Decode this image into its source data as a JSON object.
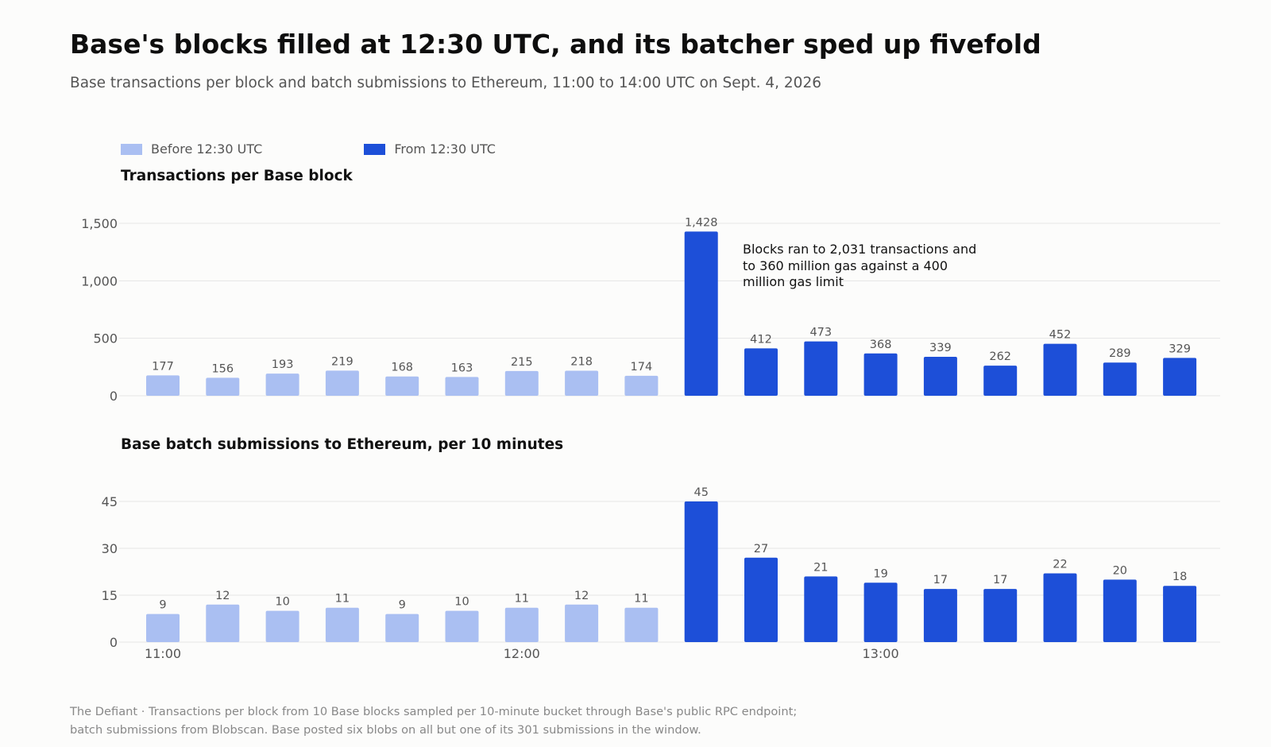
{
  "title": "Base's blocks filled at 12:30 UTC, and its batcher sped up fivefold",
  "subtitle": "Base transactions per block and batch submissions to Ethereum, 11:00 to 14:00 UTC on Sept. 4, 2026",
  "legend": [
    {
      "label": "Before 12:30 UTC",
      "color": "#aabff2"
    },
    {
      "label": "From 12:30 UTC",
      "color": "#1d4fd8"
    }
  ],
  "chart_data": [
    {
      "type": "bar",
      "title": "Transactions per Base block",
      "categories": [
        "11:00",
        "11:10",
        "11:20",
        "11:30",
        "11:40",
        "11:50",
        "12:00",
        "12:10",
        "12:20",
        "12:30",
        "12:40",
        "12:50",
        "13:00",
        "13:10",
        "13:20",
        "13:30",
        "13:40",
        "13:50"
      ],
      "values": [
        177,
        156,
        193,
        219,
        168,
        163,
        215,
        218,
        174,
        1428,
        412,
        473,
        368,
        339,
        262,
        452,
        289,
        329
      ],
      "value_labels": [
        "177",
        "156",
        "193",
        "219",
        "168",
        "163",
        "215",
        "218",
        "174",
        "1,428",
        "412",
        "473",
        "368",
        "339",
        "262",
        "452",
        "289",
        "329"
      ],
      "yticks": [
        0,
        500,
        1000,
        1500
      ],
      "ytick_labels": [
        "0",
        "500",
        "1,000",
        "1,500"
      ],
      "ylim": [
        0,
        1500
      ],
      "highlight_from_index": 9,
      "grid": true,
      "annotation": "Blocks ran to 2,031 transactions and to 360 million gas against a 400 million gas limit"
    },
    {
      "type": "bar",
      "title": "Base batch submissions to Ethereum, per 10 minutes",
      "categories": [
        "11:00",
        "11:10",
        "11:20",
        "11:30",
        "11:40",
        "11:50",
        "12:00",
        "12:10",
        "12:20",
        "12:30",
        "12:40",
        "12:50",
        "13:00",
        "13:10",
        "13:20",
        "13:30",
        "13:40",
        "13:50"
      ],
      "values": [
        9,
        12,
        10,
        11,
        9,
        10,
        11,
        12,
        11,
        45,
        27,
        21,
        19,
        17,
        17,
        22,
        20,
        18
      ],
      "value_labels": [
        "9",
        "12",
        "10",
        "11",
        "9",
        "10",
        "11",
        "12",
        "11",
        "45",
        "27",
        "21",
        "19",
        "17",
        "17",
        "22",
        "20",
        "18"
      ],
      "yticks": [
        0,
        15,
        30,
        45
      ],
      "ytick_labels": [
        "0",
        "15",
        "30",
        "45"
      ],
      "ylim": [
        0,
        45
      ],
      "xtick_labels": [
        {
          "index": 0,
          "label": "11:00"
        },
        {
          "index": 6,
          "label": "12:00"
        },
        {
          "index": 12,
          "label": "13:00"
        }
      ],
      "highlight_from_index": 9,
      "grid": true
    }
  ],
  "footer": [
    "The Defiant · Transactions per block from 10 Base blocks sampled per 10-minute bucket through Base's public RPC endpoint;",
    "batch submissions from Blobscan. Base posted six blobs on all but one of its 301 submissions in the window."
  ]
}
